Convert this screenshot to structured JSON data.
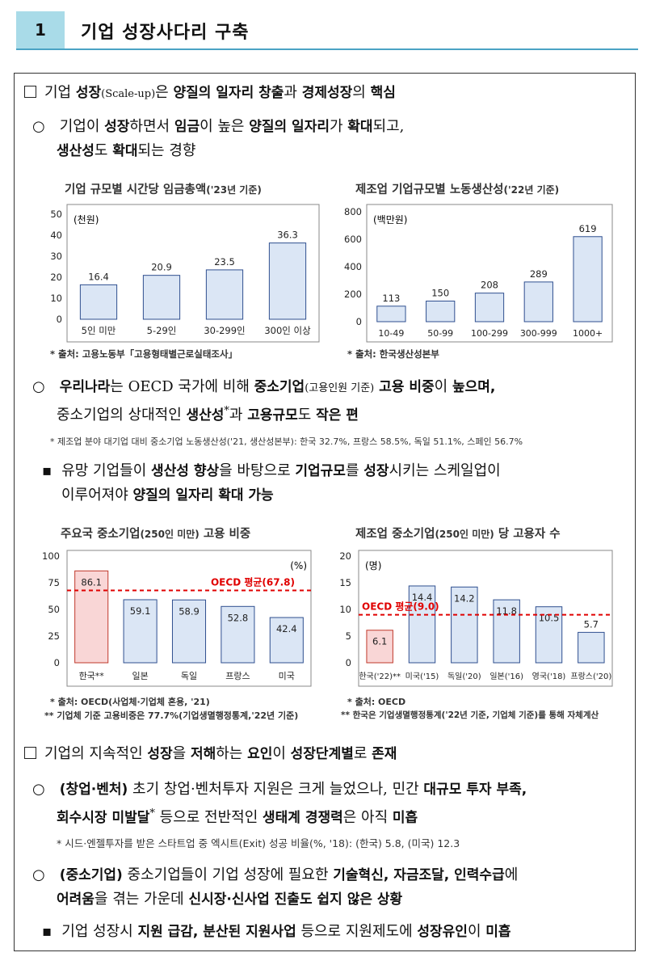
{
  "header": {
    "number": "1",
    "title": "기업 성장사다리 구축"
  },
  "s1": {
    "prefix": "기업 ",
    "t1": "성장",
    "t2": "(Scale-up)",
    "t3": "은 ",
    "t4": "양질의 일자리 창출",
    "t5": "과 ",
    "t6": "경제성장",
    "t7": "의 ",
    "t8": "핵심"
  },
  "s1b": {
    "bullet": "○",
    "l1a": "기업이 ",
    "l1b": "성장",
    "l1c": "하면서 ",
    "l1d": "임금",
    "l1e": "이 높은 ",
    "l1f": "양질의 일자리",
    "l1g": "가 ",
    "l1h": "확대",
    "l1i": "되고,",
    "l2a": "생산성",
    "l2b": "도 ",
    "l2c": "확대",
    "l2d": "되는 경향"
  },
  "chart1": {
    "title": "기업 규모별 시간당 임금총액",
    "title_sub": "('23년 기준)",
    "unit": "(천원)",
    "source": "* 출처: 고용노동부「고용형태별근로실태조사」"
  },
  "chart2": {
    "title": "제조업 기업규모별 노동생산성",
    "title_sub": "('22년 기준)",
    "unit": "(백만원)",
    "source": "* 출처: 한국생산성본부"
  },
  "s1c": {
    "bullet": "○",
    "l1a": "우리나라",
    "l1b": "는 OECD 국가에 비해 ",
    "l1c": "중소기업",
    "l1d": "(고용인원 기준)",
    "l1e": " 고용 비중",
    "l1f": "이 ",
    "l1g": "높으며,",
    "l2a": "중소기업의 상대적인 ",
    "l2b": "생산성",
    "l2c": "*",
    "l2d": "과 ",
    "l2e": "고용규모",
    "l2f": "도 ",
    "l2g": "작은 편",
    "note": "* 제조업 분야 대기업 대비 중소기업 노동생산성('21, 생산성본부): 한국 32.7%, 프랑스 58.5%, 독일 51.1%, 스페인 56.7%"
  },
  "s1d": {
    "bullet": "▪",
    "l1a": "유망 기업들이 ",
    "l1b": "생산성 향상",
    "l1c": "을 바탕으로 ",
    "l1d": "기업규모",
    "l1e": "를 ",
    "l1f": "성장",
    "l1g": "시키는 스케일업이",
    "l2a": "이루어져야 ",
    "l2b": "양질의 일자리 확대 가능"
  },
  "chart3": {
    "title": "주요국 중소기업",
    "title_sub": "(250인 미만)",
    "title_end": " 고용 비중",
    "unit": "(%)",
    "ref_label": "OECD 평균(67.8)",
    "source1": "* 출처: OECD(사업체·기업체 혼용, '21)",
    "source2": "** 기업체 기준 고용비중은 77.7%(기업생멸행정통계,'22년 기준)"
  },
  "chart4": {
    "title": "제조업 중소기업",
    "title_sub": "(250인 미만)",
    "title_end": " 당 고용자 수",
    "unit": "(명)",
    "ref_label": "OECD 평균(9.0)",
    "source1": "* 출처: OECD",
    "source2": "** 한국은 기업생멸행정통계('22년 기준, 기업체 기준)를 통해 자체계산"
  },
  "s2": {
    "l1a": "기업의 지속적인 ",
    "l1b": "성장",
    "l1c": "을 ",
    "l1d": "저해",
    "l1e": "하는 ",
    "l1f": "요인",
    "l1g": "이 ",
    "l1h": "성장단계별",
    "l1i": "로 ",
    "l1j": "존재"
  },
  "s2a": {
    "bullet": "○",
    "l1a": "(창업·벤처)",
    "l1b": " 초기 창업·벤처투자 지원은 크게 늘었으나, 민간 ",
    "l1c": "대규모 투자 부족,",
    "l2a": "회수시장 미발달",
    "l2b": "*",
    "l2c": " 등으로 전반적인 ",
    "l2d": "생태계 경쟁력",
    "l2e": "은 아직 ",
    "l2f": "미흡",
    "note": "* 시드·엔젤투자를 받은 스타트업 중 엑시트(Exit) 성공 비율(%, '18): (한국) 5.8, (미국) 12.3"
  },
  "s2b": {
    "bullet": "○",
    "l1a": "(중소기업)",
    "l1b": " 중소기업들이 기업 성장에 필요한 ",
    "l1c": "기술혁신, 자금조달, 인력수급",
    "l1d": "에",
    "l2a": "어려움",
    "l2b": "을 겪는 가운데 ",
    "l2c": "신시장·신사업 진출도 쉽지 않은 상황"
  },
  "s2c": {
    "bullet": "▪",
    "l1a": "기업 성장시 ",
    "l1b": "지원 급감, 분산된 지원사업",
    "l1c": " 등으로 지원제도에 ",
    "l1d": "성장유인",
    "l1e": "이 ",
    "l1f": "미흡"
  },
  "colors": {
    "bar_fill": "#dbe6f5",
    "bar_stroke": "#2f4f8f",
    "korea_fill": "#f9d6d6",
    "korea_stroke": "#c0392b",
    "ref_line": "#e00000"
  },
  "chart_data": [
    {
      "type": "bar",
      "title": "기업 규모별 시간당 임금총액('23년 기준)",
      "ylabel": "(천원)",
      "categories": [
        "5인 미만",
        "5-29인",
        "30-299인",
        "300인 이상"
      ],
      "values": [
        16.4,
        20.9,
        23.5,
        36.3
      ],
      "ylim": [
        0,
        50
      ],
      "yticks": [
        0,
        10,
        20,
        30,
        40,
        50
      ]
    },
    {
      "type": "bar",
      "title": "제조업 기업규모별 노동생산성('22년 기준)",
      "ylabel": "(백만원)",
      "categories": [
        "10-49",
        "50-99",
        "100-299",
        "300-999",
        "1000+"
      ],
      "values": [
        113,
        150,
        208,
        289,
        619
      ],
      "ylim": [
        0,
        800
      ],
      "yticks": [
        0,
        200,
        400,
        600,
        800
      ]
    },
    {
      "type": "bar",
      "title": "주요국 중소기업(250인 미만) 고용 비중",
      "ylabel": "(%)",
      "categories": [
        "한국**",
        "일본",
        "독일",
        "프랑스",
        "미국"
      ],
      "values": [
        86.1,
        59.1,
        58.9,
        52.8,
        42.4
      ],
      "ylim": [
        0,
        100
      ],
      "yticks": [
        0,
        25,
        50,
        75,
        100
      ],
      "reference": {
        "label": "OECD 평균(67.8)",
        "value": 67.8
      }
    },
    {
      "type": "bar",
      "title": "제조업 중소기업(250인 미만) 당 고용자 수",
      "ylabel": "(명)",
      "categories": [
        "한국('22)**",
        "미국('15)",
        "독일('20)",
        "일본('16)",
        "영국('18)",
        "프랑스('20)"
      ],
      "values": [
        6.1,
        14.4,
        14.2,
        11.8,
        10.5,
        5.7
      ],
      "ylim": [
        0,
        20
      ],
      "yticks": [
        0,
        5,
        10,
        15,
        20
      ],
      "reference": {
        "label": "OECD 평균(9.0)",
        "value": 9.0
      }
    }
  ]
}
